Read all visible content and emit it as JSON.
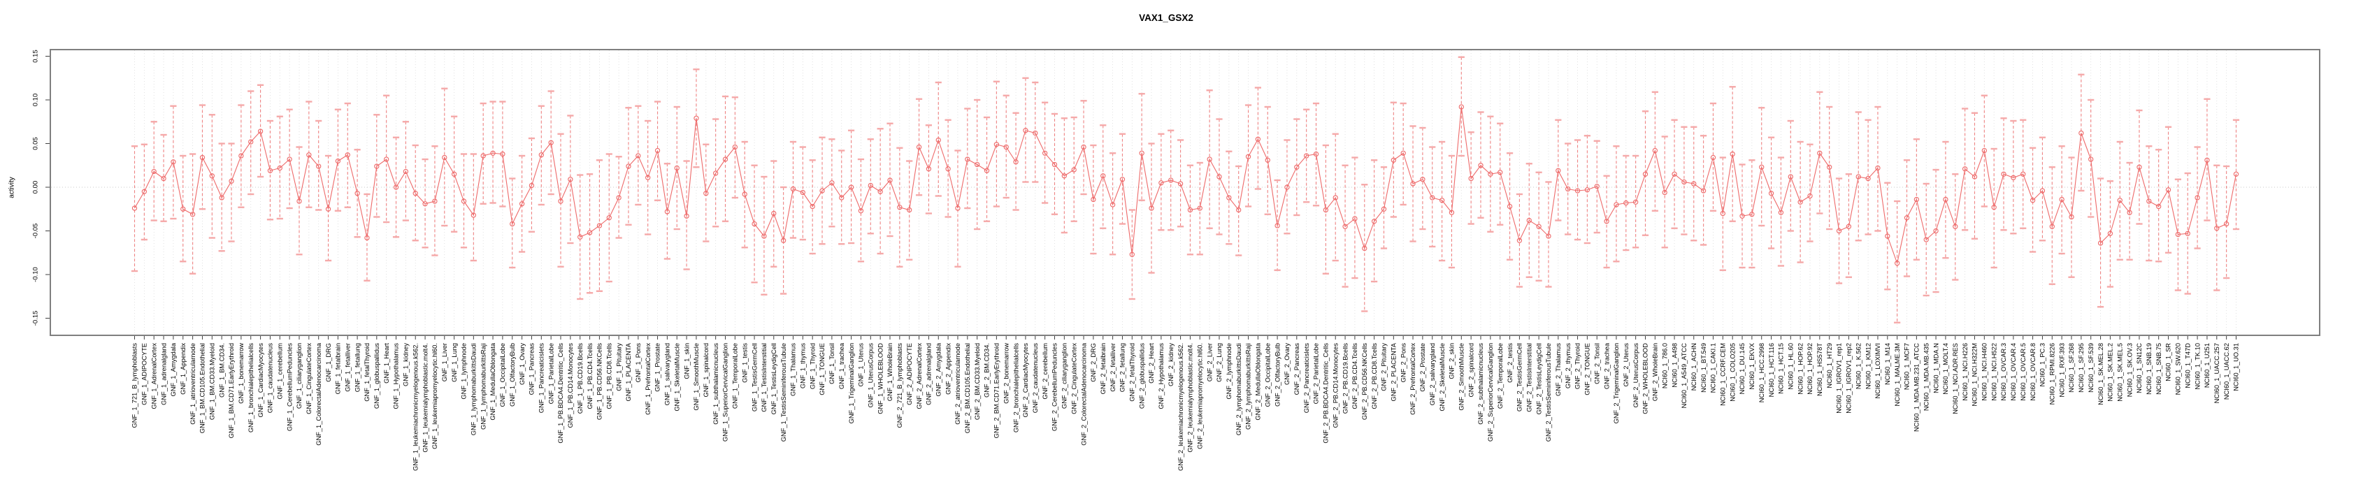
{
  "page": {
    "title": "VAX1_GSX2"
  },
  "chart_data": {
    "type": "line",
    "subtype": "points-with-error-bars",
    "title": "VAX1_GSX2",
    "xlabel": "",
    "ylabel": "activity",
    "ylim": [
      -0.17,
      0.158
    ],
    "yticks": [
      0.15,
      0.1,
      0.05,
      0.0,
      -0.05,
      -0.1,
      -0.15
    ],
    "ytick_labels": [
      "0.15",
      "0.10",
      "0.05",
      "0.00",
      "-0.05",
      "-0.10",
      "-0.15"
    ],
    "grid": {
      "vertical_per_category": true,
      "horizontal_zero_line": true
    },
    "legend_position": "none",
    "point_style": "open-circle",
    "colors": {
      "point": "#ee6a6a",
      "line": "#ee6a6a",
      "error_bar": "#ef8383",
      "error_cap": "#f5a9a9",
      "grid": "#dadada",
      "zero_line": "#c9c9c9",
      "frame": "#7f7f7f",
      "tick": "#404040",
      "text": "#000000",
      "background": "#ffffff"
    },
    "categories": [
      "GNF_1_721_B_lymphoblasts",
      "GNF_1_ADIPOCYTE",
      "GNF_1_AdrenalCortex",
      "GNF_1_adrenalgland",
      "GNF_1_Amygdala",
      "GNF_1_Appendix",
      "GNF_1_atrioventricularnode",
      "GNF_1_BM.CD105.Endothelial",
      "GNF_1_BM.CD33.Myeloid",
      "GNF_1_BM.CD34.",
      "GNF_1_BM.CD71.EarlyErythroid",
      "GNF_1_bonemarrow",
      "GNF_1_bronchialepithelialcells",
      "GNF_1_CardiacMyocytes",
      "GNF_1_caudatenucleus",
      "GNF_1_cerebellum",
      "GNF_1_CerebellumPeduncles",
      "GNF_1_ciliaryganglion",
      "GNF_1_CingulateCortex",
      "GNF_1_ColorectalAdenocarcinoma",
      "GNF_1_DRG",
      "GNF_1_fetalbrain",
      "GNF_1_fetalliver",
      "GNF_1_fetallung",
      "GNF_1_fetalThyroid",
      "GNF_1_globuspallidus",
      "GNF_1_Heart",
      "GNF_1_Hypothalamus",
      "GNF_1_kidney",
      "GNF_1_leukemiachronicmyelogenous.k562.",
      "GNF_1_leukemialymphoblastic.molt4.",
      "GNF_1_leukemiapromyelocytic.hl60.",
      "GNF_1_Liver",
      "GNF_1_Lung",
      "GNF_1_lymphnode",
      "GNF_1_lymphomaburkittsDaudi",
      "GNF_1_lymphomaburkittsRaji",
      "GNF_1_MedullaOblongata",
      "GNF_1_OccipitalLobe",
      "GNF_1_OlfactoryBulb",
      "GNF_1_Ovary",
      "GNF_1_Pancreas",
      "GNF_1_Pancreaticislets",
      "GNF_1_ParietalLobe",
      "GNF_1_PB.BDCA4.Dentritic_Cells",
      "GNF_1_PB.CD14.Monocytes",
      "GNF_1_PB.CD19.Bcells",
      "GNF_1_PB.CD4.Tcells",
      "GNF_1_PB.CD56.NKCells",
      "GNF_1_PB.CD8.Tcells",
      "GNF_1_Pituitary",
      "GNF_1_PLACENTA",
      "GNF_1_Pons",
      "GNF_1_PrefrontalCortex",
      "GNF_1_Prostate",
      "GNF_1_salivarygland",
      "GNF_1_SkeletalMuscle",
      "GNF_1_skin",
      "GNF_1_SmoothMuscle",
      "GNF_1_spinalcord",
      "GNF_1_subthalamicnucleus",
      "GNF_1_SuperiorCervicalGanglion",
      "GNF_1_TemporalLobe",
      "GNF_1_testis",
      "GNF_1_TestisGermCell",
      "GNF_1_TestisInterstitial",
      "GNF_1_TestisLeydigCell",
      "GNF_1_TestisSeminiferousTubule",
      "GNF_1_Thalamus",
      "GNF_1_thymus",
      "GNF_1_Thyroid",
      "GNF_1_TONGUE",
      "GNF_1_Tonsil",
      "GNF_1_trachea",
      "GNF_1_TrigeminalGanglion",
      "GNF_1_Uterus",
      "GNF_1_UterusCorpus",
      "GNF_1_WHOLEBLOOD",
      "GNF_1_WholeBrain",
      "GNF_2_721_B_lymphoblasts",
      "GNF_2_ADIPOCYTE",
      "GNF_2_AdrenalCortex",
      "GNF_2_adrenalgland",
      "GNF_2_Amygdala",
      "GNF_2_Appendix",
      "GNF_2_atrioventricularnode",
      "GNF_2_BM.CD105.Endothelial",
      "GNF_2_BM.CD33.Myeloid",
      "GNF_2_BM.CD34.",
      "GNF_2_BM.CD71.EarlyErythroid",
      "GNF_2_bonemarrow",
      "GNF_2_bronchialepithelialcells",
      "GNF_2_CardiacMyocytes",
      "GNF_2_caudatenucleus",
      "GNF_2_cerebellum",
      "GNF_2_CerebellumPeduncles",
      "GNF_2_ciliaryganglion",
      "GNF_2_CingulateCortex",
      "GNF_2_ColorectalAdenocarcinoma",
      "GNF_2_DRG",
      "GNF_2_fetalbrain",
      "GNF_2_fetalliver",
      "GNF_2_fetallung",
      "GNF_2_fetalThyroid",
      "GNF_2_globuspallidus",
      "GNF_2_Heart",
      "GNF_2_Hypothalamus",
      "GNF_2_kidney",
      "GNF_2_leukemiachronicmyelogenous.k562.",
      "GNF_2_leukemialymphoblastic.molt4.",
      "GNF_2_leukemiapromyelocytic.hl60.",
      "GNF_2_Liver",
      "GNF_2_Lung",
      "GNF_2_lymphnode",
      "GNF_2_lymphomaburkittsDaudi",
      "GNF_2_lymphomaburkittsRaji",
      "GNF_2_MedullaOblongata",
      "GNF_2_OccipitalLobe",
      "GNF_2_OlfactoryBulb",
      "GNF_2_Ovary",
      "GNF_2_Pancreas",
      "GNF_2_Pancreaticislets",
      "GNF_2_ParietalLobe",
      "GNF_2_PB.BDCA4.Dentritic_Cells",
      "GNF_2_PB.CD14.Monocytes",
      "GNF_2_PB.CD19.Bcells",
      "GNF_2_PB.CD4.Tcells",
      "GNF_2_PB.CD56.NKCells",
      "GNF_2_PB.CD8.Tcells",
      "GNF_2_Pituitary",
      "GNF_2_PLACENTA",
      "GNF_2_Pons",
      "GNF_2_PrefrontalCortex",
      "GNF_2_Prostate",
      "GNF_2_salivarygland",
      "GNF_2_SkeletalMuscle",
      "GNF_2_skin",
      "GNF_2_SmoothMuscle",
      "GNF_2_spinalcord",
      "GNF_2_subthalamicnucleus",
      "GNF_2_SuperiorCervicalGanglion",
      "GNF_2_TemporalLobe",
      "GNF_2_testis",
      "GNF_2_TestisGermCell",
      "GNF_2_TestisInterstitial",
      "GNF_2_TestisLeydigCell",
      "GNF_2_TestisSeminiferousTubule",
      "GNF_2_Thalamus",
      "GNF_2_thymus",
      "GNF_2_Thyroid",
      "GNF_2_TONGUE",
      "GNF_2_Tonsil",
      "GNF_2_trachea",
      "GNF_2_TrigeminalGanglion",
      "GNF_2_Uterus",
      "GNF_2_UterusCorpus",
      "GNF_2_WHOLEBLOOD",
      "GNF_2_WholeBrain",
      "NCI60_1_786.0",
      "NCI60_1_A498",
      "NCI60_1_A549_ATCC",
      "NCI60_1_ACHN",
      "NCI60_1_BT.549",
      "NCI60_1_CAKI.1",
      "NCI60_1_CCRF.CEM",
      "NCI60_1_COLO205",
      "NCI60_1_DU.145",
      "NCI60_1_EKVX",
      "NCI60_1_HCC.2998",
      "NCI60_1_HCT.116",
      "NCI60_1_HCT.15",
      "NCI60_1_HL.60",
      "NCI60_1_HOP.62",
      "NCI60_1_HOP.92",
      "NCI60_1_HS578T",
      "NCI60_1_HT29",
      "NCI60_1_IGROV1_rep1",
      "NCI60_1_IGROV1_rep2",
      "NCI60_1_K.562",
      "NCI60_1_KM12",
      "NCI60_1_LOXIMVI",
      "NCI60_1_M14",
      "NCI60_1_MALME.3M",
      "NCI60_1_MCF7",
      "NCI60_1_MDA.MB.231_ATCC",
      "NCI60_1_MDA.MB.435",
      "NCI60_1_MDA.N",
      "NCI60_1_MOLT.4",
      "NCI60_1_NCI.ADR.RES",
      "NCI60_1_NCI.H226",
      "NCI60_1_NCI.H322M",
      "NCI60_1_NCI.H460",
      "NCI60_1_NCI.H522",
      "NCI60_1_OVCAR.3",
      "NCI60_1_OVCAR.4",
      "NCI60_1_OVCAR.5",
      "NCI60_1_OVCAR.8",
      "NCI60_1_PC.3",
      "NCI60_1_RPMI.8226",
      "NCI60_1_RXF.393",
      "NCI60_1_SF.268",
      "NCI60_1_SF.295",
      "NCI60_1_SF.539",
      "NCI60_1_SK.MEL.28",
      "NCI60_1_SK.MEL.2",
      "NCI60_1_SK.MEL.5",
      "NCI60_1_SK.OV.3",
      "NCI60_1_SN12C",
      "NCI60_1_SNB.19",
      "NCI60_1_SNB.75",
      "NCI60_1_SR",
      "NCI60_1_SW.620",
      "NCI60_1_T47D",
      "NCI60_1_TK.10",
      "NCI60_1_U251",
      "NCI60_1_UACC.257",
      "NCI60_1_UACC.62",
      "NCI60_1_UO.31"
    ],
    "series": [
      {
        "name": "activity",
        "means": [
          -0.024,
          -0.005,
          0.018,
          0.01,
          0.029,
          -0.025,
          -0.031,
          0.034,
          0.013,
          -0.012,
          0.007,
          0.036,
          0.052,
          0.064,
          0.019,
          0.022,
          0.032,
          -0.016,
          0.037,
          0.024,
          -0.025,
          0.03,
          0.037,
          -0.007,
          -0.058,
          0.024,
          0.032,
          0.0,
          0.018,
          -0.007,
          -0.019,
          -0.016,
          0.034,
          0.015,
          -0.016,
          -0.032,
          0.036,
          0.039,
          0.038,
          -0.042,
          -0.019,
          0.002,
          0.037,
          0.051,
          -0.016,
          0.009,
          -0.057,
          -0.052,
          -0.044,
          -0.035,
          -0.012,
          0.024,
          0.036,
          0.011,
          0.042,
          -0.028,
          0.022,
          -0.033,
          0.079,
          -0.007,
          0.016,
          0.032,
          0.046,
          -0.008,
          -0.042,
          -0.056,
          -0.03,
          -0.061,
          -0.002,
          -0.006,
          -0.022,
          -0.004,
          0.005,
          -0.012,
          0.0,
          -0.027,
          0.002,
          -0.005,
          0.008,
          -0.023,
          -0.026,
          0.046,
          0.021,
          0.054,
          0.021,
          -0.024,
          0.032,
          0.026,
          0.019,
          0.049,
          0.046,
          0.029,
          0.065,
          0.062,
          0.039,
          0.026,
          0.013,
          0.02,
          0.046,
          -0.014,
          0.013,
          -0.02,
          0.009,
          -0.077,
          0.039,
          -0.024,
          0.005,
          0.008,
          0.004,
          -0.026,
          -0.024,
          0.032,
          0.012,
          -0.012,
          -0.026,
          0.035,
          0.055,
          0.031,
          -0.044,
          0.0,
          0.023,
          0.036,
          0.038,
          -0.026,
          -0.012,
          -0.045,
          -0.036,
          -0.07,
          -0.039,
          -0.025,
          0.031,
          0.039,
          0.004,
          0.009,
          -0.012,
          -0.015,
          -0.029,
          0.092,
          0.01,
          0.025,
          0.015,
          0.017,
          -0.022,
          -0.061,
          -0.038,
          -0.045,
          -0.056,
          0.019,
          -0.002,
          -0.004,
          -0.003,
          0.001,
          -0.039,
          -0.02,
          -0.018,
          -0.017,
          0.015,
          0.042,
          -0.006,
          0.015,
          0.006,
          0.004,
          -0.004,
          0.034,
          -0.03,
          0.038,
          -0.033,
          -0.031,
          0.023,
          -0.007,
          -0.029,
          0.012,
          -0.017,
          -0.01,
          0.039,
          0.023,
          -0.05,
          -0.045,
          0.012,
          0.01,
          0.022,
          -0.056,
          -0.087,
          -0.035,
          -0.014,
          -0.06,
          -0.05,
          -0.014,
          -0.045,
          0.021,
          0.012,
          0.042,
          -0.023,
          0.015,
          0.011,
          0.015,
          -0.015,
          -0.004,
          -0.045,
          -0.014,
          -0.034,
          0.062,
          0.032,
          -0.064,
          -0.053,
          -0.015,
          -0.029,
          0.023,
          -0.016,
          -0.022,
          -0.003,
          -0.054,
          -0.053,
          -0.012,
          0.031,
          -0.047,
          -0.042,
          0.015
        ],
        "upper": [
          0.047,
          0.049,
          0.075,
          0.06,
          0.093,
          0.036,
          0.038,
          0.094,
          0.083,
          0.05,
          0.05,
          0.094,
          0.11,
          0.117,
          0.076,
          0.081,
          0.089,
          0.046,
          0.098,
          0.076,
          0.036,
          0.089,
          0.096,
          0.043,
          -0.008,
          0.083,
          0.105,
          0.057,
          0.075,
          0.048,
          0.032,
          0.047,
          0.113,
          0.081,
          0.038,
          0.038,
          0.096,
          0.098,
          0.098,
          0.01,
          0.036,
          0.056,
          0.093,
          0.11,
          0.061,
          0.082,
          0.014,
          0.015,
          0.031,
          0.038,
          0.035,
          0.091,
          0.093,
          0.076,
          0.098,
          0.027,
          0.092,
          0.03,
          0.135,
          0.049,
          0.078,
          0.104,
          0.103,
          0.052,
          0.025,
          0.012,
          0.03,
          0.0,
          0.052,
          0.046,
          0.031,
          0.057,
          0.055,
          0.042,
          0.065,
          0.032,
          0.055,
          0.067,
          0.073,
          0.045,
          0.03,
          0.101,
          0.071,
          0.12,
          0.077,
          0.042,
          0.09,
          0.1,
          0.08,
          0.121,
          0.105,
          0.085,
          0.125,
          0.12,
          0.097,
          0.084,
          0.079,
          0.08,
          0.099,
          0.048,
          0.071,
          0.039,
          0.061,
          -0.026,
          0.107,
          0.05,
          0.061,
          0.065,
          0.054,
          0.025,
          0.028,
          0.111,
          0.078,
          0.041,
          0.024,
          0.094,
          0.114,
          0.092,
          0.008,
          0.054,
          0.078,
          0.089,
          0.096,
          0.048,
          0.061,
          0.025,
          0.034,
          0.003,
          0.031,
          0.023,
          0.097,
          0.096,
          0.07,
          0.068,
          0.046,
          0.052,
          0.036,
          0.149,
          0.063,
          0.086,
          0.081,
          0.073,
          0.039,
          -0.008,
          0.027,
          0.017,
          0.006,
          0.077,
          0.05,
          0.054,
          0.059,
          0.053,
          0.013,
          0.047,
          0.036,
          0.036,
          0.087,
          0.109,
          0.058,
          0.077,
          0.069,
          0.069,
          0.059,
          0.096,
          0.034,
          0.115,
          0.026,
          0.031,
          0.091,
          0.057,
          0.034,
          0.076,
          0.052,
          0.049,
          0.109,
          0.092,
          0.01,
          0.015,
          0.086,
          0.077,
          0.092,
          0.005,
          -0.016,
          0.031,
          0.055,
          0.004,
          0.02,
          0.052,
          0.015,
          0.09,
          0.085,
          0.105,
          0.044,
          0.079,
          0.076,
          0.077,
          0.045,
          0.057,
          0.023,
          0.047,
          0.034,
          0.129,
          0.1,
          0.01,
          0.007,
          0.052,
          0.028,
          0.088,
          0.047,
          0.043,
          0.069,
          0.009,
          0.016,
          0.046,
          0.101,
          0.025,
          0.024,
          0.077
        ],
        "lower": [
          -0.096,
          -0.06,
          -0.038,
          -0.039,
          -0.036,
          -0.085,
          -0.099,
          -0.025,
          -0.058,
          -0.073,
          -0.062,
          -0.023,
          -0.008,
          0.012,
          -0.037,
          -0.036,
          -0.024,
          -0.077,
          -0.023,
          -0.026,
          -0.084,
          -0.027,
          -0.023,
          -0.057,
          -0.107,
          -0.034,
          -0.04,
          -0.057,
          -0.038,
          -0.061,
          -0.069,
          -0.078,
          -0.044,
          -0.051,
          -0.069,
          -0.084,
          -0.019,
          -0.018,
          -0.022,
          -0.092,
          -0.074,
          -0.051,
          -0.02,
          -0.008,
          -0.091,
          -0.064,
          -0.128,
          -0.121,
          -0.119,
          -0.108,
          -0.058,
          -0.043,
          -0.02,
          -0.054,
          -0.015,
          -0.082,
          -0.048,
          -0.094,
          0.023,
          -0.062,
          -0.045,
          -0.039,
          -0.012,
          -0.069,
          -0.109,
          -0.123,
          -0.091,
          -0.122,
          -0.058,
          -0.06,
          -0.076,
          -0.065,
          -0.045,
          -0.065,
          -0.064,
          -0.085,
          -0.053,
          -0.076,
          -0.056,
          -0.091,
          -0.083,
          -0.009,
          -0.03,
          -0.01,
          -0.034,
          -0.091,
          -0.024,
          -0.048,
          -0.039,
          -0.022,
          -0.012,
          -0.026,
          0.006,
          0.006,
          -0.018,
          -0.031,
          -0.052,
          -0.039,
          -0.008,
          -0.076,
          -0.047,
          -0.077,
          -0.042,
          -0.128,
          -0.015,
          -0.098,
          -0.049,
          -0.049,
          -0.045,
          -0.077,
          -0.077,
          -0.047,
          -0.054,
          -0.065,
          -0.078,
          -0.022,
          -0.002,
          -0.031,
          -0.095,
          -0.053,
          -0.032,
          -0.017,
          -0.021,
          -0.099,
          -0.084,
          -0.114,
          -0.104,
          -0.142,
          -0.108,
          -0.07,
          -0.034,
          -0.02,
          -0.062,
          -0.048,
          -0.068,
          -0.084,
          -0.092,
          0.036,
          -0.042,
          -0.035,
          -0.051,
          -0.043,
          -0.083,
          -0.114,
          -0.103,
          -0.107,
          -0.114,
          -0.038,
          -0.054,
          -0.06,
          -0.064,
          -0.052,
          -0.092,
          -0.085,
          -0.072,
          -0.069,
          -0.055,
          -0.027,
          -0.069,
          -0.047,
          -0.054,
          -0.061,
          -0.066,
          -0.027,
          -0.095,
          -0.039,
          -0.092,
          -0.092,
          -0.044,
          -0.07,
          -0.09,
          -0.05,
          -0.086,
          -0.062,
          -0.03,
          -0.048,
          -0.11,
          -0.103,
          -0.061,
          -0.054,
          -0.05,
          -0.117,
          -0.155,
          -0.102,
          -0.083,
          -0.124,
          -0.12,
          -0.081,
          -0.106,
          -0.049,
          -0.059,
          -0.022,
          -0.092,
          -0.049,
          -0.053,
          -0.047,
          -0.074,
          -0.061,
          -0.111,
          -0.076,
          -0.103,
          -0.004,
          -0.034,
          -0.137,
          -0.114,
          -0.083,
          -0.083,
          -0.042,
          -0.084,
          -0.085,
          -0.075,
          -0.118,
          -0.122,
          -0.07,
          -0.038,
          -0.118,
          -0.104,
          -0.048
        ]
      }
    ]
  }
}
